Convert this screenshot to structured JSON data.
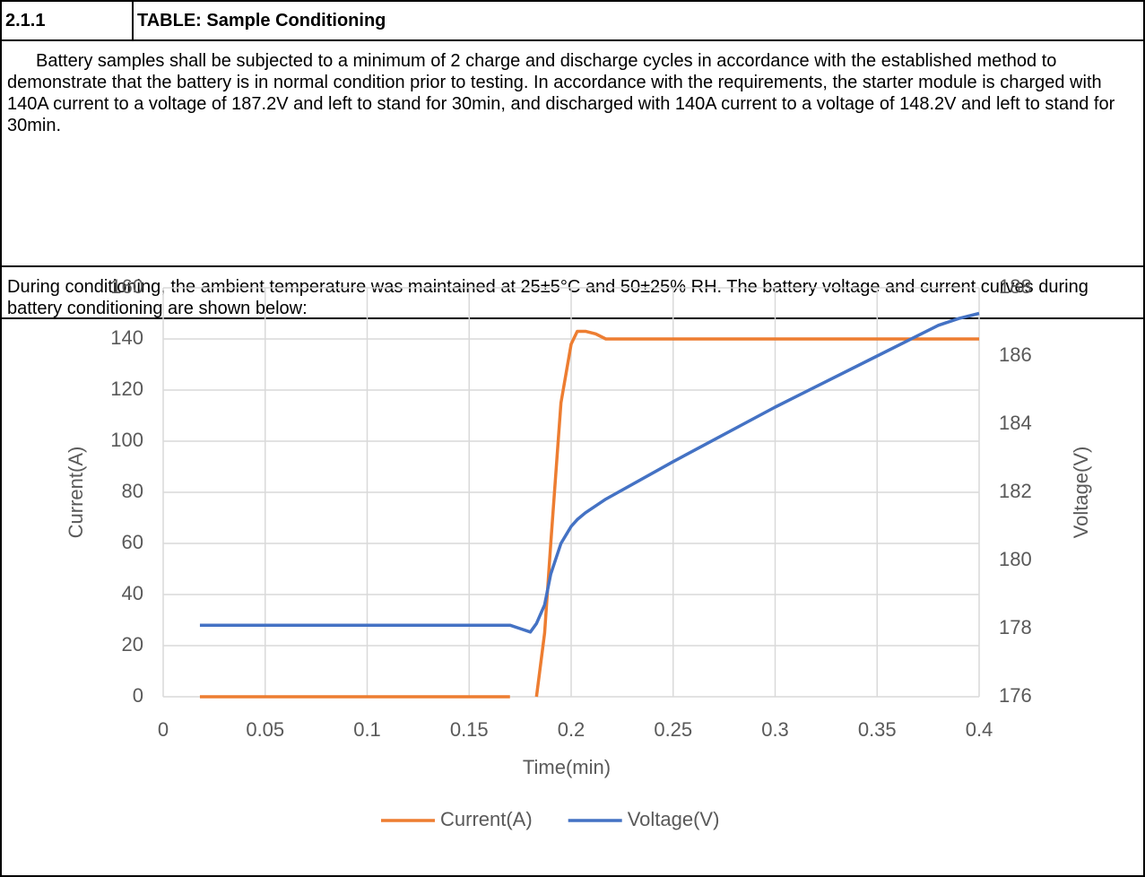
{
  "table": {
    "number": "2.1.1",
    "title": "TABLE: Sample Conditioning",
    "paragraphs": [
      "Battery samples shall be subjected to a minimum of 2 charge and discharge cycles in accordance with the established method to demonstrate that the battery is in normal condition prior to testing. In accordance with the requirements, the starter module is charged with 140A current to a voltage of 187.2V and left to stand for 30min, and discharged with 140A current to a voltage of 148.2V and left to stand for 30min.",
      "During conditioning, the ambient temperature was maintained at 25±5°C and 50±25% RH. The battery voltage and current curves during battery conditioning are shown below:"
    ]
  },
  "chart_data": {
    "type": "line",
    "x_label": "Time(min)",
    "y_label": "Current(A)",
    "y2_label": "Voltage(V)",
    "x": [
      0.018,
      0.05,
      0.1,
      0.15,
      0.17,
      0.175,
      0.18,
      0.183,
      0.187,
      0.19,
      0.195,
      0.2,
      0.203,
      0.207,
      0.212,
      0.217,
      0.25,
      0.3,
      0.35,
      0.38,
      0.39,
      0.4
    ],
    "series": [
      {
        "name": "Current(A)",
        "color": "#ed7d31",
        "values": [
          0,
          0,
          0,
          0,
          0,
          null,
          null,
          0,
          25,
          60,
          115,
          138,
          143,
          143,
          142,
          140,
          140,
          140,
          140,
          140,
          140,
          140
        ]
      },
      {
        "name": "Voltage(V)",
        "color": "#4472c4",
        "axis": "y2",
        "values": [
          178.1,
          178.1,
          178.1,
          178.1,
          178.1,
          178.0,
          177.9,
          178.15,
          178.7,
          179.6,
          180.5,
          181.0,
          181.2,
          181.4,
          181.6,
          181.8,
          182.9,
          184.5,
          186.0,
          186.9,
          187.1,
          187.25
        ]
      }
    ],
    "xlim": [
      0,
      0.4
    ],
    "xticks": [
      0,
      0.05,
      0.1,
      0.15,
      0.2,
      0.25,
      0.3,
      0.35,
      0.4
    ],
    "ylim": [
      0,
      160
    ],
    "yticks": [
      0,
      20,
      40,
      60,
      80,
      100,
      120,
      140,
      160
    ],
    "y2lim": [
      176,
      188
    ],
    "y2ticks": [
      176,
      178,
      180,
      182,
      184,
      186,
      188
    ],
    "grid": true,
    "legend": "bottom"
  }
}
